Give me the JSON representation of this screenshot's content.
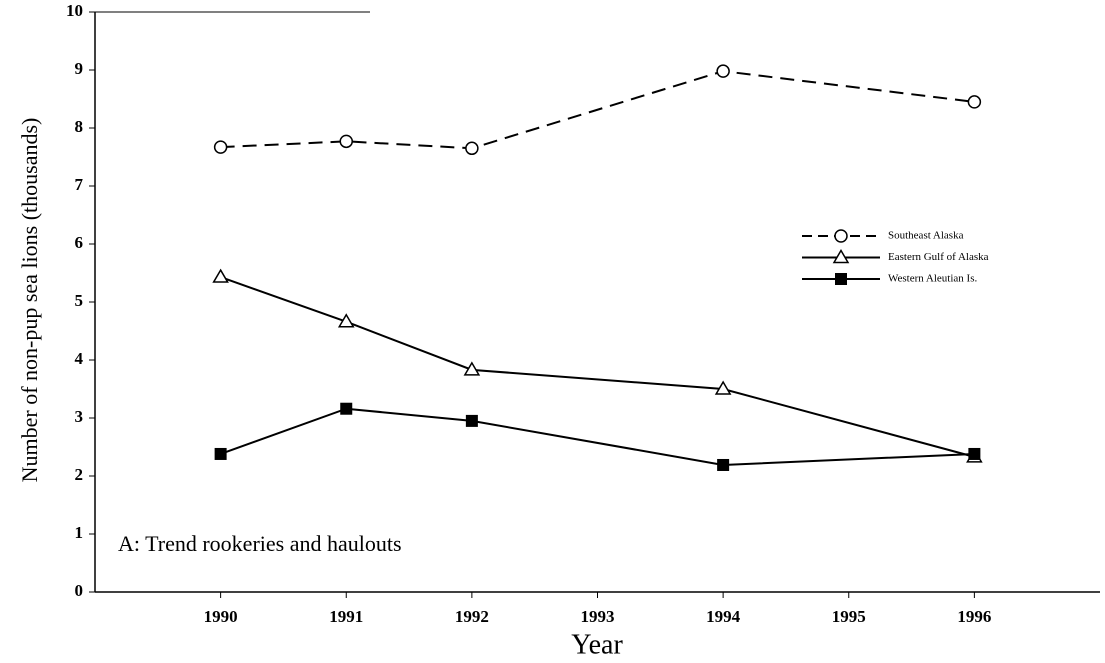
{
  "chart_data": {
    "type": "line",
    "annotation": "A:  Trend rookeries and haulouts",
    "x_label": "Year",
    "y_label": "Number of non-pup sea lions (thousands)",
    "x": [
      1990,
      1991,
      1992,
      1994,
      1996
    ],
    "series": [
      {
        "name": "Southeast Alaska",
        "color": "#000000",
        "marker": "circle",
        "dashed": true,
        "values": [
          7.67,
          7.77,
          7.65,
          8.98,
          8.45
        ]
      },
      {
        "name": "Eastern Gulf of Alaska",
        "color": "#000000",
        "marker": "triangle",
        "dashed": false,
        "values": [
          5.43,
          4.66,
          3.83,
          3.5,
          2.33
        ]
      },
      {
        "name": "Western Aleutian Is.",
        "color": "#000000",
        "marker": "square",
        "dashed": false,
        "values": [
          2.38,
          3.16,
          2.95,
          2.19,
          2.38
        ]
      }
    ],
    "xlim": [
      1989,
      1997
    ],
    "xticks": [
      1990,
      1991,
      1992,
      1993,
      1994,
      1995,
      1996
    ],
    "ylim": [
      0,
      10
    ],
    "yticks": [
      0,
      1,
      2,
      3,
      4,
      5,
      6,
      7,
      8,
      9,
      10
    ],
    "grid": false,
    "legend": "right"
  }
}
